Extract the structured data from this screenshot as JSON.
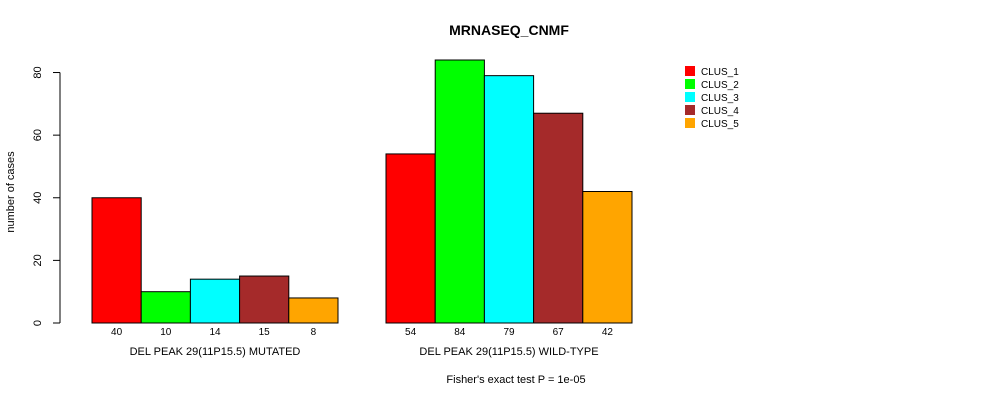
{
  "chart_data": {
    "type": "bar",
    "title": "MRNASEQ_CNMF",
    "ylabel": "number of cases",
    "xlabel": "",
    "ylim": [
      0,
      84
    ],
    "yticks": [
      "0",
      "20",
      "40",
      "60",
      "80"
    ],
    "groups": [
      "DEL PEAK 29(11P15.5) MUTATED",
      "DEL PEAK 29(11P15.5) WILD-TYPE"
    ],
    "series": [
      {
        "name": "CLUS_1",
        "color": "#ff0000",
        "values": [
          40,
          54
        ],
        "labels": [
          "40",
          "54"
        ]
      },
      {
        "name": "CLUS_2",
        "color": "#00ff00",
        "values": [
          10,
          84
        ],
        "labels": [
          "10",
          "84"
        ]
      },
      {
        "name": "CLUS_3",
        "color": "#00ffff",
        "values": [
          14,
          79
        ],
        "labels": [
          "14",
          "79"
        ]
      },
      {
        "name": "CLUS_4",
        "color": "#a52a2a",
        "values": [
          15,
          67
        ],
        "labels": [
          "15",
          "67"
        ]
      },
      {
        "name": "CLUS_5",
        "color": "#ffa500",
        "values": [
          8,
          42
        ],
        "labels": [
          "8",
          "42"
        ]
      }
    ],
    "footnote": "Fisher's exact test P = 1e-05",
    "legend_position": "top-right"
  }
}
